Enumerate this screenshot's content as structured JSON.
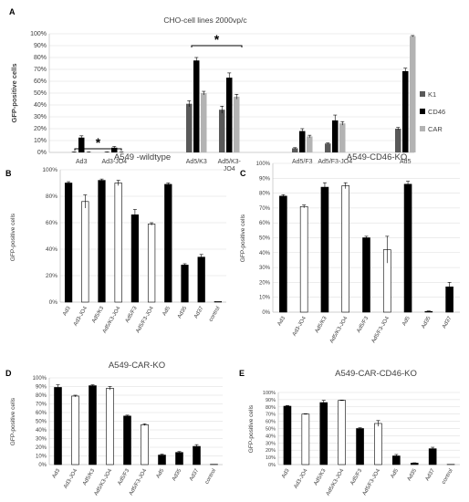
{
  "colors": {
    "k1": "#595959",
    "cd46": "#000000",
    "car": "#b3b3b3",
    "bar_black": "#000000",
    "bar_white": "#ffffff",
    "axis": "#bfbfbf",
    "grid": "#d9d9d9",
    "text": "#404040"
  },
  "chart_data": [
    {
      "type": "bar",
      "panel_letter": "A",
      "title": "CHO-cell lines 2000vp/c",
      "ylabel": "GFP-positive cells",
      "ylim": [
        0,
        100
      ],
      "yticks": [
        "0%",
        "10%",
        "20%",
        "30%",
        "40%",
        "50%",
        "60%",
        "70%",
        "80%",
        "90%",
        "100%"
      ],
      "categories": [
        "Ad3",
        "Ad3-JO4",
        "Ad5/K3",
        "Ad5/K3-JO4",
        "Ad5/F3",
        "Ad5/F3-JO4",
        "Ad5"
      ],
      "series": [
        {
          "name": "K1",
          "values": [
            0.3,
            0.3,
            41,
            36,
            3.5,
            7.5,
            20
          ]
        },
        {
          "name": "CD46",
          "values": [
            12.5,
            4,
            77.5,
            63,
            18,
            27,
            68.5
          ]
        },
        {
          "name": "CAR",
          "values": [
            0.3,
            0.3,
            50,
            47,
            13.5,
            24.5,
            98
          ]
        }
      ],
      "errors": [
        [
          0.2,
          0.2,
          2.5,
          3,
          0.5,
          0.5,
          1
        ],
        [
          1.5,
          1,
          2.5,
          4,
          2,
          4.5,
          2.5
        ],
        [
          0.2,
          0.2,
          1.5,
          2,
          1,
          1.5,
          0.5
        ]
      ],
      "significance": [
        "*",
        "*"
      ],
      "legend_position": "right"
    },
    {
      "type": "bar",
      "panel_letter": "B",
      "title": "A549 -wildtype",
      "ylabel": "GFP-positive cells",
      "ylim": [
        0,
        100
      ],
      "yticks": [
        "0%",
        "20%",
        "40%",
        "60%",
        "80%",
        "100%"
      ],
      "categories": [
        "Ad3",
        "Ad3-JO4",
        "Ad5/K3",
        "Ad5/K3-JO4",
        "Ad5/F3",
        "Ad5/F3-JO4",
        "Ad5",
        "Ad35",
        "Ad37",
        "control"
      ],
      "values": [
        90,
        76,
        92,
        90,
        66,
        59,
        89,
        28,
        34,
        0.5
      ],
      "errors": [
        1,
        5,
        1,
        2,
        4,
        1,
        1,
        1,
        2,
        0
      ],
      "fills": [
        "black",
        "white",
        "black",
        "white",
        "black",
        "white",
        "black",
        "black",
        "black",
        "white"
      ]
    },
    {
      "type": "bar",
      "panel_letter": "C",
      "title": "A549-CD46-KO",
      "ylabel": "GFP-positive cells",
      "ylim": [
        0,
        100
      ],
      "yticks": [
        "0%",
        "10%",
        "20%",
        "30%",
        "40%",
        "50%",
        "60%",
        "70%",
        "80%",
        "90%",
        "100%"
      ],
      "categories": [
        "Ad3",
        "Ad3-JO4",
        "Ad5/K3",
        "Ad5/K3-JO4",
        "Ad5/F3",
        "Ad5/F3-JO4",
        "Ad5",
        "Ad35",
        "Ad37"
      ],
      "values": [
        78,
        71,
        84,
        85,
        50,
        42,
        86,
        0.5,
        17
      ],
      "errors": [
        1,
        1,
        3,
        2,
        1,
        9,
        2,
        0.3,
        3
      ],
      "fills": [
        "black",
        "white",
        "black",
        "white",
        "black",
        "white",
        "black",
        "black",
        "black"
      ]
    },
    {
      "type": "bar",
      "panel_letter": "D",
      "title": "A549-CAR-KO",
      "ylabel": "GFP-positive cells",
      "ylim": [
        0,
        100
      ],
      "yticks": [
        "0%",
        "10%",
        "20%",
        "30%",
        "40%",
        "50%",
        "60%",
        "70%",
        "80%",
        "90%",
        "100%"
      ],
      "categories": [
        "Ad3",
        "Ad3-JO4",
        "Ad5/K3",
        "Ad5/K3-JO4",
        "Ad5/F3",
        "Ad5/F3-JO4",
        "Ad5",
        "Ad35",
        "Ad37",
        "control"
      ],
      "values": [
        89,
        79,
        91,
        88,
        56,
        46,
        11,
        14,
        21,
        0.3
      ],
      "errors": [
        3,
        1,
        1,
        2,
        1,
        1,
        1,
        1,
        2,
        0
      ],
      "fills": [
        "black",
        "white",
        "black",
        "white",
        "black",
        "white",
        "black",
        "black",
        "black",
        "white"
      ]
    },
    {
      "type": "bar",
      "panel_letter": "E",
      "title": "A549-CAR-CD46-KO",
      "ylabel": "GFP-positive cells",
      "ylim": [
        0,
        100
      ],
      "yticks": [
        "0%",
        "10%",
        "20%",
        "30%",
        "40%",
        "50%",
        "60%",
        "70%",
        "80%",
        "90%",
        "100%"
      ],
      "categories": [
        "Ad3",
        "Ad3-JO4",
        "Ad5/K3",
        "Ad5/K3-JO4",
        "Ad5/F3",
        "Ad5/F3-JO4",
        "Ad5",
        "Ad35",
        "Ad37",
        "control"
      ],
      "values": [
        81,
        70,
        86,
        89,
        50,
        57,
        12,
        2,
        22,
        0.3
      ],
      "errors": [
        1,
        0.5,
        3,
        0.5,
        1,
        4,
        2,
        0.5,
        2,
        0
      ],
      "fills": [
        "black",
        "white",
        "black",
        "white",
        "black",
        "white",
        "black",
        "black",
        "black",
        "white"
      ]
    }
  ]
}
